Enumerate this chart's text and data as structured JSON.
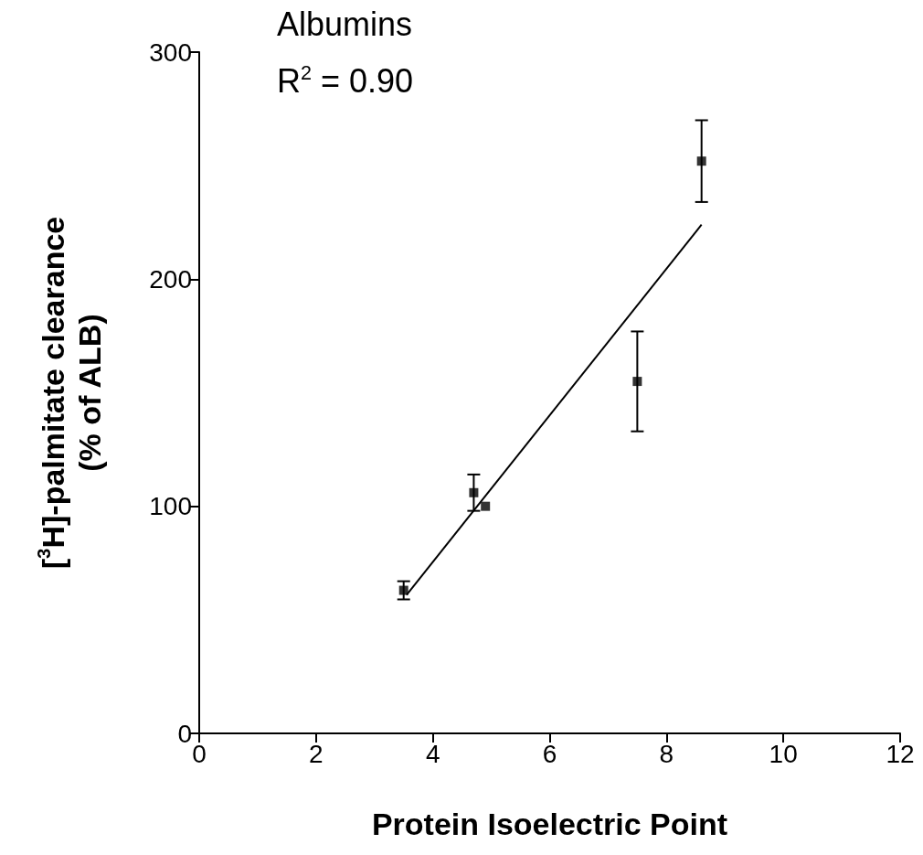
{
  "chart_data": {
    "type": "scatter",
    "xlabel": "Protein Isoelectric Point",
    "ylabel": "[$^{3}$H]-palmitate clearance\n(% of ALB)",
    "annotations": [
      "Albumins",
      "R$^{2}$ = 0.90"
    ],
    "x": [
      3.5,
      4.7,
      4.9,
      7.5,
      8.6
    ],
    "series": [
      {
        "name": null,
        "color": "#000000",
        "values": [
          63,
          106,
          100,
          155,
          252
        ],
        "errors": [
          4,
          8,
          null,
          22,
          18
        ]
      },
      {
        "type": "line",
        "color": "#000000",
        "x": [
          3.55,
          8.6
        ],
        "values": [
          61,
          224
        ],
        "marker": "none"
      }
    ],
    "xlim": [
      0,
      12
    ],
    "xticks": [
      0,
      2,
      4,
      6,
      8,
      10,
      12
    ],
    "ylim": [
      0,
      300
    ],
    "yticks": [
      0,
      100,
      200,
      300
    ],
    "marker": "square",
    "grid": false
  }
}
